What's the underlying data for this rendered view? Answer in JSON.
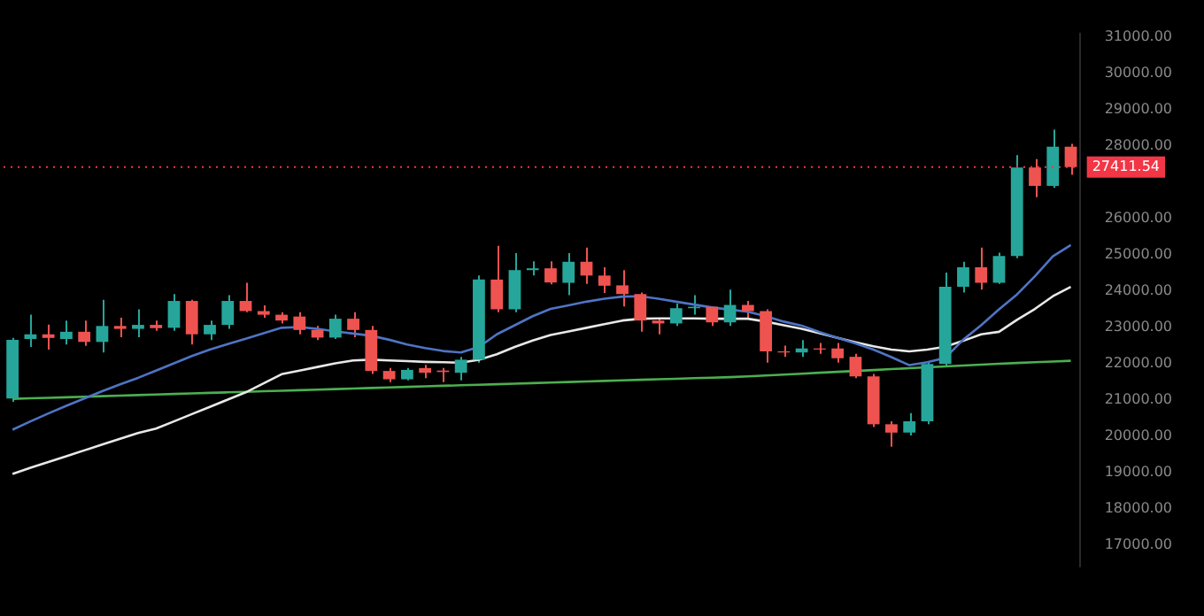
{
  "chart_data": {
    "type": "candlestick",
    "categories": [
      null,
      null,
      null,
      null,
      null,
      null,
      null,
      null,
      null,
      null,
      null,
      null,
      null,
      null,
      null,
      null,
      null,
      null,
      null,
      null,
      null,
      null,
      null,
      null,
      null,
      null,
      null,
      null,
      null,
      null,
      null,
      null,
      null,
      null,
      null,
      null,
      null,
      null,
      null,
      null,
      null,
      null,
      null,
      null,
      null,
      null,
      null,
      null,
      null,
      null,
      null,
      null,
      null,
      null,
      null,
      null,
      null,
      null,
      null,
      null
    ],
    "ohlc": [
      [
        21030,
        22700,
        20940,
        22650
      ],
      [
        22670,
        23340,
        22450,
        22800
      ],
      [
        22800,
        23070,
        22380,
        22700
      ],
      [
        22670,
        23180,
        22520,
        22870
      ],
      [
        22870,
        23180,
        22480,
        22590
      ],
      [
        22590,
        23750,
        22300,
        23030
      ],
      [
        23030,
        23260,
        22720,
        22950
      ],
      [
        22950,
        23490,
        22720,
        23060
      ],
      [
        23060,
        23180,
        22900,
        22970
      ],
      [
        22980,
        23910,
        22900,
        23720
      ],
      [
        23720,
        23750,
        22520,
        22800
      ],
      [
        22800,
        23180,
        22640,
        23060
      ],
      [
        23060,
        23880,
        22950,
        23720
      ],
      [
        23720,
        24220,
        23410,
        23440
      ],
      [
        23440,
        23600,
        23260,
        23340
      ],
      [
        23340,
        23410,
        23100,
        23180
      ],
      [
        23290,
        23410,
        22800,
        22920
      ],
      [
        22920,
        23030,
        22640,
        22710
      ],
      [
        22710,
        23340,
        22670,
        23230
      ],
      [
        23230,
        23410,
        22720,
        22920
      ],
      [
        22920,
        23030,
        21710,
        21790
      ],
      [
        21790,
        21870,
        21480,
        21560
      ],
      [
        21560,
        21870,
        21530,
        21820
      ],
      [
        21870,
        21960,
        21590,
        21740
      ],
      [
        21800,
        21870,
        21480,
        21760
      ],
      [
        21740,
        22180,
        21530,
        22100
      ],
      [
        22100,
        24420,
        22020,
        24310
      ],
      [
        24310,
        25240,
        23410,
        23490
      ],
      [
        23490,
        25040,
        23410,
        24570
      ],
      [
        24570,
        24810,
        24420,
        24620
      ],
      [
        24620,
        24810,
        24180,
        24230
      ],
      [
        24220,
        25040,
        23880,
        24800
      ],
      [
        24800,
        25190,
        24190,
        24420
      ],
      [
        24420,
        24650,
        23940,
        24140
      ],
      [
        24150,
        24570,
        23570,
        23910
      ],
      [
        23910,
        23950,
        22870,
        23180
      ],
      [
        23180,
        23260,
        22800,
        23100
      ],
      [
        23100,
        23650,
        23030,
        23520
      ],
      [
        23520,
        23880,
        23340,
        23560
      ],
      [
        23560,
        23570,
        23030,
        23130
      ],
      [
        23130,
        24030,
        23030,
        23610
      ],
      [
        23610,
        23720,
        23260,
        23440
      ],
      [
        23440,
        23490,
        22020,
        22330
      ],
      [
        22330,
        22490,
        22180,
        22300
      ],
      [
        22300,
        22640,
        22180,
        22410
      ],
      [
        22410,
        22560,
        22260,
        22380
      ],
      [
        22410,
        22560,
        22020,
        22140
      ],
      [
        22180,
        22260,
        21590,
        21640
      ],
      [
        21640,
        21710,
        20245,
        20320
      ],
      [
        20320,
        20400,
        19700,
        20090
      ],
      [
        20090,
        20630,
        20010,
        20400
      ],
      [
        20400,
        22020,
        20320,
        21980
      ],
      [
        21980,
        24500,
        21900,
        24110
      ],
      [
        24110,
        24800,
        23950,
        24650
      ],
      [
        24650,
        25190,
        24030,
        24220
      ],
      [
        24220,
        25050,
        24190,
        24960
      ],
      [
        24960,
        27740,
        24900,
        27400
      ],
      [
        27400,
        27630,
        26580,
        26890
      ],
      [
        26890,
        28440,
        26840,
        27970
      ],
      [
        27970,
        28050,
        27200,
        27411.54
      ]
    ],
    "colors": [
      "#26a69a",
      "#26a69a",
      "#ef5350",
      "#26a69a",
      "#ef5350",
      "#26a69a",
      "#ef5350",
      "#26a69a",
      "#ef5350",
      "#26a69a",
      "#ef5350",
      "#26a69a",
      "#26a69a",
      "#ef5350",
      "#ef5350",
      "#ef5350",
      "#ef5350",
      "#ef5350",
      "#26a69a",
      "#ef5350",
      "#ef5350",
      "#ef5350",
      "#26a69a",
      "#ef5350",
      "#ef5350",
      "#26a69a",
      "#26a69a",
      "#ef5350",
      "#26a69a",
      "#26a69a",
      "#ef5350",
      "#26a69a",
      "#ef5350",
      "#ef5350",
      "#ef5350",
      "#ef5350",
      "#ef5350",
      "#26a69a",
      "#26a69a",
      "#ef5350",
      "#26a69a",
      "#ef5350",
      "#ef5350",
      "#ef5350",
      "#26a69a",
      "#ef5350",
      "#ef5350",
      "#ef5350",
      "#ef5350",
      "#ef5350",
      "#26a69a",
      "#26a69a",
      "#26a69a",
      "#26a69a",
      "#ef5350",
      "#26a69a",
      "#26a69a",
      "#ef5350",
      "#26a69a",
      "#ef5350"
    ],
    "series": [
      {
        "type": "line",
        "color": "#4f74c4",
        "values": [
          20170,
          20400,
          20620,
          20830,
          21030,
          21230,
          21420,
          21600,
          21800,
          22000,
          22200,
          22380,
          22530,
          22680,
          22830,
          22980,
          23000,
          22950,
          22880,
          22820,
          22760,
          22650,
          22520,
          22420,
          22340,
          22300,
          22450,
          22800,
          23050,
          23300,
          23500,
          23600,
          23700,
          23780,
          23840,
          23850,
          23780,
          23700,
          23620,
          23540,
          23480,
          23420,
          23300,
          23150,
          23040,
          22860,
          22700,
          22550,
          22380,
          22170,
          21950,
          22030,
          22150,
          22650,
          23050,
          23490,
          23900,
          24400,
          24950,
          25260
        ]
      },
      {
        "type": "line",
        "color": "#e8e8e8",
        "values": [
          18950,
          19120,
          19280,
          19440,
          19600,
          19760,
          19920,
          20080,
          20200,
          20400,
          20600,
          20800,
          21000,
          21200,
          21450,
          21700,
          21800,
          21900,
          22000,
          22080,
          22100,
          22080,
          22060,
          22040,
          22030,
          22020,
          22100,
          22250,
          22450,
          22630,
          22780,
          22880,
          22980,
          23080,
          23180,
          23230,
          23240,
          23240,
          23240,
          23230,
          23230,
          23230,
          23150,
          23050,
          22950,
          22830,
          22700,
          22580,
          22470,
          22380,
          22330,
          22380,
          22460,
          22620,
          22800,
          22870,
          23200,
          23500,
          23850,
          24110
        ]
      },
      {
        "type": "line",
        "color": "#4caf50",
        "values": [
          21020,
          21035,
          21050,
          21065,
          21080,
          21095,
          21110,
          21125,
          21140,
          21155,
          21170,
          21185,
          21200,
          21215,
          21230,
          21245,
          21260,
          21275,
          21290,
          21305,
          21320,
          21335,
          21350,
          21365,
          21380,
          21395,
          21410,
          21425,
          21440,
          21455,
          21470,
          21485,
          21500,
          21515,
          21530,
          21545,
          21560,
          21575,
          21590,
          21605,
          21620,
          21640,
          21665,
          21690,
          21715,
          21740,
          21765,
          21790,
          21815,
          21840,
          21865,
          21890,
          21915,
          21940,
          21965,
          21990,
          22010,
          22030,
          22050,
          22070
        ]
      }
    ],
    "ylim": [
      16400,
      31100
    ],
    "yticks": [
      {
        "value": 17000,
        "label": "17000.00"
      },
      {
        "value": 18000,
        "label": "18000.00"
      },
      {
        "value": 19000,
        "label": "19000.00"
      },
      {
        "value": 20000,
        "label": "20000.00"
      },
      {
        "value": 21000,
        "label": "21000.00"
      },
      {
        "value": 22000,
        "label": "22000.00"
      },
      {
        "value": 23000,
        "label": "23000.00"
      },
      {
        "value": 24000,
        "label": "24000.00"
      },
      {
        "value": 25000,
        "label": "25000.00"
      },
      {
        "value": 26000,
        "label": "26000.00"
      },
      {
        "value": 28000,
        "label": "28000.00"
      },
      {
        "value": 29000,
        "label": "29000.00"
      },
      {
        "value": 30000,
        "label": "30000.00"
      },
      {
        "value": 31000,
        "label": "31000.00"
      }
    ],
    "ref_lines": [
      {
        "axis": "y",
        "value": 27411.54,
        "label": "27411.54",
        "color": "#f23645",
        "line_style": "dotted"
      }
    ],
    "tick_labels": "y",
    "grid": false,
    "legend": false
  }
}
